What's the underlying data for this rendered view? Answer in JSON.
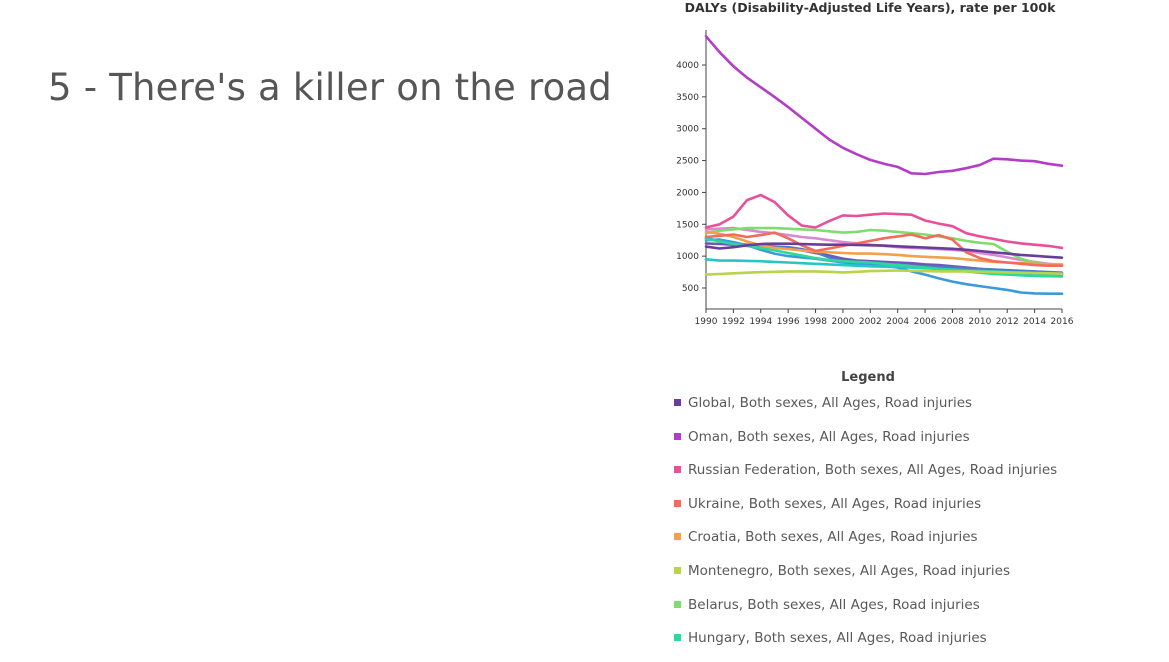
{
  "slide": {
    "title": "5 - There's a killer on the road"
  },
  "chart_data": {
    "type": "line",
    "title": "DALYs (Disability-Adjusted Life Years), rate per 100k",
    "xlabel": "",
    "ylabel": "",
    "xlim": [
      1990,
      2016
    ],
    "ylim": [
      200,
      4500
    ],
    "x_ticks": [
      1990,
      1992,
      1994,
      1996,
      1998,
      2000,
      2002,
      2004,
      2006,
      2008,
      2010,
      2012,
      2014,
      2016
    ],
    "y_ticks": [
      500,
      1000,
      1500,
      2000,
      2500,
      3000,
      3500,
      4000
    ],
    "grid": false,
    "legend_title": "Legend",
    "legend_position": "bottom",
    "x": [
      1990,
      1991,
      1992,
      1993,
      1994,
      1995,
      1996,
      1997,
      1998,
      1999,
      2000,
      2001,
      2002,
      2003,
      2004,
      2005,
      2006,
      2007,
      2008,
      2009,
      2010,
      2011,
      2012,
      2013,
      2014,
      2015,
      2016
    ],
    "series": [
      {
        "name": "Global, Both sexes, All Ages, Road injuries",
        "color": "#6a3d9a",
        "values": [
          1150,
          1120,
          1140,
          1170,
          1190,
          1195,
          1195,
          1190,
          1185,
          1180,
          1180,
          1175,
          1170,
          1165,
          1155,
          1145,
          1135,
          1125,
          1115,
          1100,
          1080,
          1060,
          1040,
          1020,
          1005,
          990,
          975
        ]
      },
      {
        "name": "Oman, Both sexes, All Ages, Road injuries",
        "color": "#b33dc6",
        "values": [
          4450,
          4200,
          3980,
          3800,
          3650,
          3500,
          3340,
          3170,
          3000,
          2830,
          2700,
          2600,
          2510,
          2450,
          2400,
          2300,
          2290,
          2320,
          2340,
          2380,
          2430,
          2530,
          2520,
          2500,
          2490,
          2450,
          2420
        ]
      },
      {
        "name": "Russian Federation, Both sexes, All Ages, Road injuries",
        "color": "#e8519a",
        "values": [
          1450,
          1500,
          1620,
          1880,
          1960,
          1850,
          1640,
          1480,
          1450,
          1550,
          1640,
          1630,
          1650,
          1670,
          1660,
          1650,
          1560,
          1510,
          1470,
          1360,
          1310,
          1270,
          1230,
          1200,
          1180,
          1160,
          1130
        ]
      },
      {
        "name": "Ukraine, Both sexes, All Ages, Road injuries",
        "color": "#f26b5b",
        "values": [
          1300,
          1320,
          1340,
          1300,
          1330,
          1370,
          1280,
          1170,
          1080,
          1120,
          1160,
          1200,
          1240,
          1280,
          1310,
          1340,
          1280,
          1330,
          1260,
          1060,
          970,
          920,
          900,
          880,
          860,
          850,
          850
        ]
      },
      {
        "name": "Croatia, Both sexes, All Ages, Road injuries",
        "color": "#f0a14a",
        "values": [
          1380,
          1350,
          1300,
          1230,
          1170,
          1130,
          1110,
          1090,
          1070,
          1060,
          1050,
          1040,
          1040,
          1030,
          1020,
          1000,
          990,
          980,
          970,
          950,
          930,
          910,
          900,
          890,
          880,
          870,
          870
        ]
      },
      {
        "name": "Montenegro, Both sexes, All Ages, Road injuries",
        "color": "#b7d44a",
        "values": [
          710,
          720,
          730,
          740,
          750,
          755,
          760,
          760,
          760,
          755,
          745,
          755,
          765,
          770,
          775,
          770,
          765,
          760,
          760,
          760,
          755,
          750,
          745,
          740,
          735,
          730,
          725
        ]
      },
      {
        "name": "Belarus, Both sexes, All Ages, Road injuries",
        "color": "#7fdc6e",
        "values": [
          1360,
          1400,
          1420,
          1440,
          1440,
          1440,
          1430,
          1420,
          1410,
          1390,
          1370,
          1380,
          1410,
          1400,
          1380,
          1360,
          1340,
          1310,
          1280,
          1240,
          1210,
          1190,
          1070,
          960,
          900,
          870,
          860
        ]
      },
      {
        "name": "Hungary, Both sexes, All Ages, Road injuries",
        "color": "#2ed89b",
        "values": [
          1270,
          1230,
          1190,
          1160,
          1130,
          1090,
          1050,
          1010,
          970,
          940,
          920,
          910,
          900,
          880,
          860,
          840,
          820,
          800,
          780,
          760,
          740,
          720,
          710,
          700,
          690,
          685,
          680
        ]
      },
      {
        "values": [
          950,
          930,
          930,
          925,
          920,
          910,
          900,
          890,
          880,
          870,
          860,
          850,
          840,
          835,
          830,
          820,
          810,
          800,
          790,
          780,
          770,
          760,
          750,
          740,
          730,
          720,
          710
        ],
        "color": "#26c6c6"
      },
      {
        "values": [
          1250,
          1260,
          1220,
          1170,
          1100,
          1040,
          1000,
          980,
          960,
          930,
          900,
          880,
          860,
          850,
          820,
          760,
          710,
          650,
          600,
          560,
          530,
          500,
          470,
          430,
          415,
          410,
          410
        ],
        "color": "#3a9bdc"
      },
      {
        "values": [
          1280,
          1240,
          1200,
          1180,
          1160,
          1150,
          1140,
          1110,
          1060,
          980,
          920,
          900,
          880,
          870,
          860,
          850,
          840,
          830,
          820,
          810,
          800,
          790,
          780,
          770,
          760,
          750,
          740
        ],
        "color": "#4e7ac7"
      },
      {
        "values": [
          1200,
          1190,
          1180,
          1170,
          1160,
          1140,
          1120,
          1090,
          1050,
          1010,
          960,
          930,
          920,
          910,
          900,
          890,
          870,
          860,
          840,
          820,
          800,
          780,
          760,
          740,
          730,
          720,
          720
        ],
        "color": "#6f56b8"
      },
      {
        "values": [
          1420,
          1430,
          1440,
          1410,
          1380,
          1360,
          1330,
          1300,
          1280,
          1250,
          1220,
          1200,
          1180,
          1160,
          1140,
          1130,
          1120,
          1110,
          1100,
          1080,
          1050,
          1020,
          980,
          940,
          910,
          880,
          860
        ],
        "color": "#d989d2"
      }
    ]
  }
}
